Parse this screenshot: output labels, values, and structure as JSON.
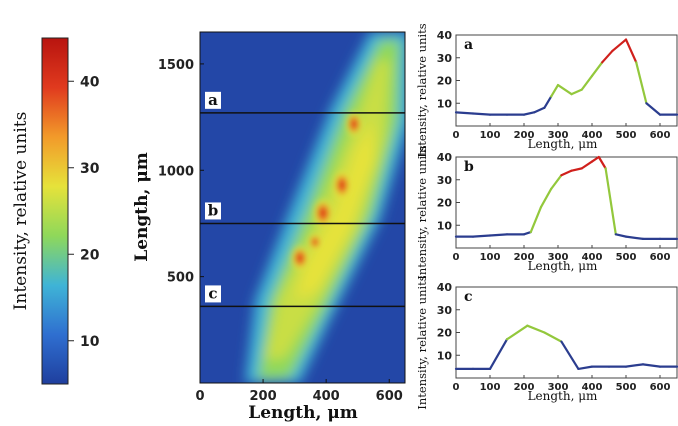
{
  "colorbar": {
    "label": "Intensity, relative units",
    "ticks": [
      "10",
      "20",
      "30",
      "40"
    ],
    "range": [
      5,
      45
    ],
    "colors": [
      "#1f3f9e",
      "#2f6fd0",
      "#3fb4d6",
      "#8fd85a",
      "#e6e23a",
      "#f29a2a",
      "#e03a1e",
      "#b8140f"
    ]
  },
  "heatmap": {
    "xlabel": "Length, μm",
    "ylabel": "Length, μm",
    "xticks": [
      "0",
      "200",
      "400",
      "600"
    ],
    "yticks": [
      "500",
      "1000",
      "1500"
    ],
    "xlim": [
      0,
      650
    ],
    "ylim": [
      0,
      1650
    ],
    "line_labels": [
      "a",
      "b",
      "c"
    ],
    "line_y": [
      1270,
      750,
      360
    ],
    "background_color": "#1f3f9e"
  },
  "chart_data": [
    {
      "type": "line",
      "panel": "a",
      "xlabel": "Length, μm",
      "ylabel": "Intensity, relative units",
      "xticks": [
        "0",
        "100",
        "200",
        "300",
        "400",
        "500",
        "600"
      ],
      "yticks": [
        "0",
        "10",
        "20",
        "30",
        "40"
      ],
      "xlim": [
        0,
        650
      ],
      "ylim": [
        0,
        40
      ],
      "x": [
        0,
        50,
        100,
        150,
        200,
        230,
        260,
        280,
        300,
        340,
        370,
        400,
        430,
        460,
        500,
        530,
        560,
        600,
        650
      ],
      "y": [
        6,
        5.5,
        5,
        5,
        5,
        6,
        8,
        13,
        18,
        14,
        16,
        22,
        28,
        33,
        38,
        28,
        10,
        5,
        5
      ]
    },
    {
      "type": "line",
      "panel": "b",
      "xlabel": "Length, μm",
      "ylabel": "Intensity, relative units",
      "xticks": [
        "0",
        "100",
        "200",
        "300",
        "400",
        "500",
        "600"
      ],
      "yticks": [
        "0",
        "10",
        "20",
        "30",
        "40"
      ],
      "xlim": [
        0,
        650
      ],
      "ylim": [
        0,
        40
      ],
      "x": [
        0,
        50,
        100,
        150,
        200,
        220,
        250,
        280,
        310,
        340,
        370,
        400,
        420,
        440,
        470,
        500,
        550,
        600,
        650
      ],
      "y": [
        5,
        5,
        5.5,
        6,
        6,
        7,
        18,
        26,
        32,
        34,
        35,
        38,
        40,
        35,
        6,
        5,
        4,
        4,
        4
      ]
    },
    {
      "type": "line",
      "panel": "c",
      "xlabel": "Length, μm",
      "ylabel": "Intensity, relative units",
      "xticks": [
        "0",
        "100",
        "200",
        "300",
        "400",
        "500",
        "600"
      ],
      "yticks": [
        "0",
        "10",
        "20",
        "30",
        "40"
      ],
      "xlim": [
        0,
        650
      ],
      "ylim": [
        0,
        40
      ],
      "x": [
        0,
        50,
        100,
        150,
        210,
        260,
        310,
        360,
        400,
        450,
        500,
        550,
        600,
        650
      ],
      "y": [
        4,
        4,
        4,
        17,
        23,
        20,
        16,
        4,
        5,
        5,
        5,
        6,
        5,
        5
      ]
    }
  ]
}
